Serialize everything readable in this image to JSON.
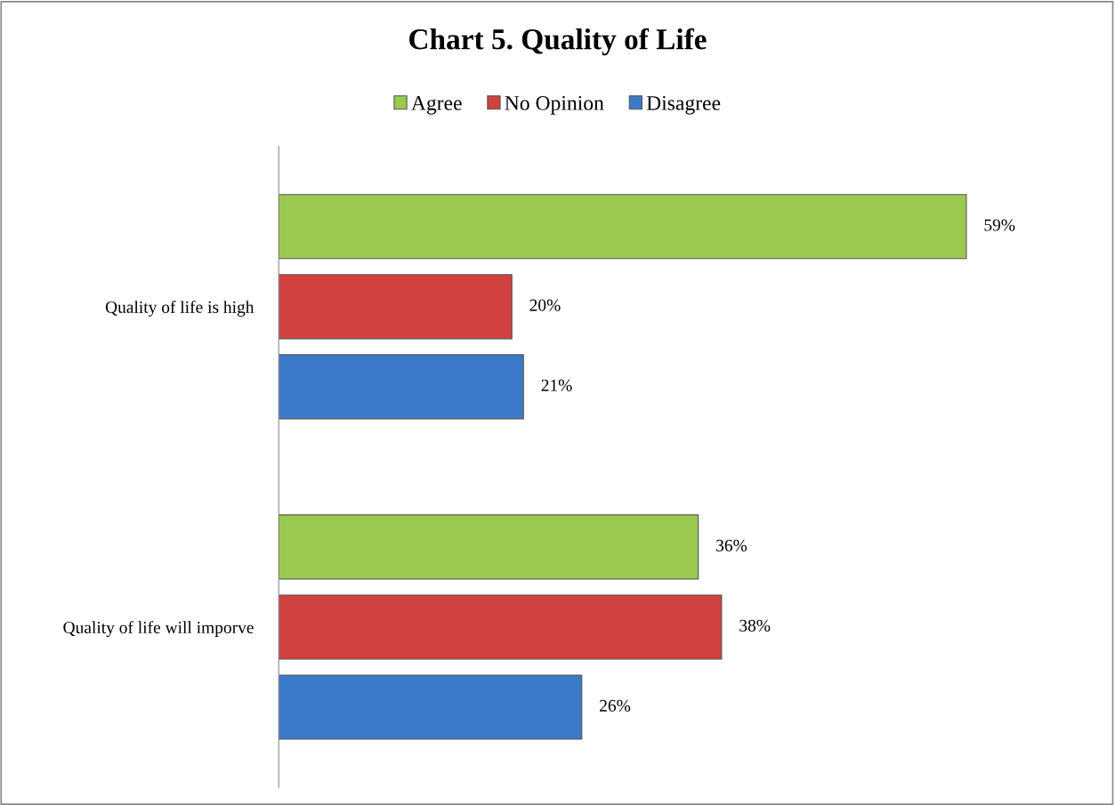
{
  "chart_data": {
    "type": "bar",
    "orientation": "horizontal",
    "title": "Chart 5. Quality of Life",
    "categories": [
      "Quality of life is high",
      "Quality of life will imporve"
    ],
    "series": [
      {
        "name": "Agree",
        "color": "#9bc94f",
        "values": [
          59,
          36
        ],
        "value_labels": [
          "59%",
          "36%"
        ]
      },
      {
        "name": "No Opinion",
        "color": "#d0413f",
        "values": [
          20,
          38
        ],
        "value_labels": [
          "20%",
          "38%"
        ]
      },
      {
        "name": "Disagree",
        "color": "#3b7ac8",
        "values": [
          21,
          26
        ],
        "value_labels": [
          "21%",
          "26%"
        ]
      }
    ],
    "legend": "top",
    "grid": false
  }
}
